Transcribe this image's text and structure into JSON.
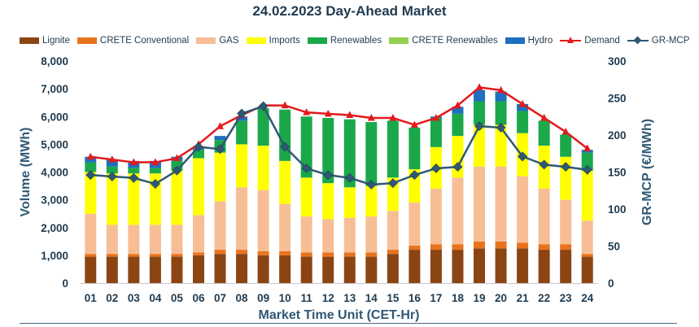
{
  "chart_data": {
    "type": "bar",
    "stacked": true,
    "title": "24.02.2023  Day-Ahead Market",
    "xlabel": "Market Time Unit (CET-Hr)",
    "ylabel": "Volume (MWh)",
    "y2label": "GR-MCP (€/MWh)",
    "ylim": [
      0,
      8000
    ],
    "y2lim": [
      0,
      300
    ],
    "yticks": [
      "0",
      "1,000",
      "2,000",
      "3,000",
      "4,000",
      "5,000",
      "6,000",
      "7,000",
      "8,000"
    ],
    "y2ticks": [
      "0",
      "50",
      "100",
      "150",
      "200",
      "250",
      "300"
    ],
    "categories": [
      "01",
      "02",
      "03",
      "04",
      "05",
      "06",
      "07",
      "08",
      "09",
      "10",
      "11",
      "12",
      "13",
      "14",
      "15",
      "16",
      "17",
      "18",
      "19",
      "20",
      "21",
      "22",
      "23",
      "24"
    ],
    "series": [
      {
        "name": "Lignite",
        "color": "#8b4513",
        "values": [
          950,
          950,
          950,
          950,
          950,
          1000,
          1050,
          1050,
          1000,
          1000,
          950,
          950,
          950,
          950,
          1050,
          1200,
          1200,
          1200,
          1250,
          1250,
          1250,
          1200,
          1200,
          950
        ]
      },
      {
        "name": "CRETE Conventional",
        "color": "#e8731e",
        "values": [
          100,
          100,
          100,
          100,
          100,
          100,
          150,
          150,
          150,
          150,
          150,
          150,
          150,
          150,
          150,
          150,
          200,
          200,
          250,
          250,
          200,
          200,
          200,
          100
        ]
      },
      {
        "name": "GAS",
        "color": "#f7be96",
        "values": [
          1450,
          1050,
          1050,
          1050,
          1050,
          1350,
          1750,
          2250,
          2200,
          1700,
          1300,
          1200,
          1250,
          1300,
          1400,
          1550,
          2000,
          2400,
          2700,
          2700,
          2400,
          2000,
          1600,
          1200
        ]
      },
      {
        "name": "Imports",
        "color": "#ffff00",
        "values": [
          1500,
          1850,
          1850,
          1850,
          1950,
          2050,
          1750,
          1550,
          1600,
          1550,
          1400,
          1300,
          1100,
          1100,
          1200,
          1200,
          1500,
          1500,
          1500,
          1500,
          1550,
          1550,
          1550,
          1800
        ]
      },
      {
        "name": "Renewables",
        "color": "#1aa84b",
        "values": [
          350,
          250,
          200,
          200,
          350,
          300,
          450,
          850,
          1350,
          1850,
          2200,
          2350,
          2450,
          2300,
          2050,
          1500,
          1050,
          800,
          850,
          850,
          800,
          900,
          800,
          650
        ]
      },
      {
        "name": "CRETE Renewables",
        "color": "#92d050",
        "values": [
          0,
          0,
          0,
          0,
          0,
          0,
          0,
          0,
          0,
          0,
          0,
          0,
          0,
          0,
          0,
          0,
          0,
          0,
          0,
          0,
          0,
          0,
          0,
          0
        ]
      },
      {
        "name": "Hydro",
        "color": "#1f6fbf",
        "values": [
          200,
          250,
          250,
          250,
          150,
          50,
          150,
          150,
          0,
          0,
          0,
          0,
          0,
          0,
          0,
          0,
          50,
          250,
          400,
          350,
          250,
          0,
          0,
          100
        ]
      }
    ],
    "lines": [
      {
        "name": "Demand",
        "axis": "left",
        "color": "#e31a1c",
        "marker": "triangle",
        "values": [
          4550,
          4450,
          4350,
          4350,
          4500,
          5000,
          5650,
          6050,
          6400,
          6400,
          6150,
          6100,
          6050,
          5950,
          5950,
          5700,
          5950,
          6400,
          7050,
          6950,
          6450,
          5950,
          5450,
          4850
        ]
      },
      {
        "name": "GR-MCP",
        "axis": "right",
        "color": "#2f5875",
        "marker": "diamond",
        "values": [
          146,
          144,
          142,
          134,
          152,
          184,
          181,
          229,
          239,
          184,
          155,
          146,
          142,
          133,
          135,
          146,
          155,
          157,
          212,
          210,
          171,
          160,
          157,
          153
        ]
      }
    ],
    "legend_position": "top"
  }
}
